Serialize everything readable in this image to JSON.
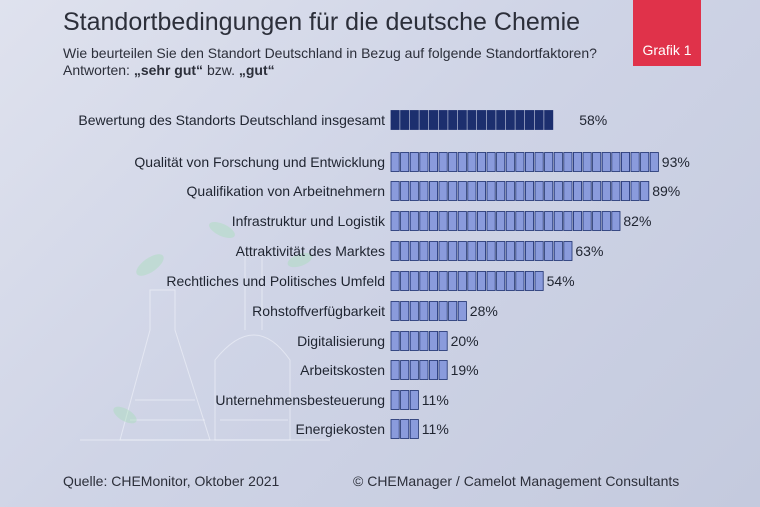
{
  "header": {
    "title": "Standortbedingungen für die deutsche Chemie",
    "subtitle": "Wie beurteilen Sie den Standort Deutschland in Bezug auf folgende Standortfaktoren?",
    "answers_prefix": "Antworten: ",
    "answers_bold1": "„sehr gut“",
    "answers_mid": " bzw. ",
    "answers_bold2": "„gut“",
    "badge": "Grafik 1"
  },
  "footer": {
    "source": "Quelle: CHEMonitor, Oktober 2021",
    "copyright": "© CHEManager / Camelot Management Consultants"
  },
  "colors": {
    "highlight_fill": "#1c2f6e",
    "bar_fill": "#8a9bdc",
    "bar_border": "#1c2f6e"
  },
  "chart_data": {
    "type": "bar",
    "orientation": "horizontal",
    "unit": "%",
    "categories": [
      "Bewertung des Standorts Deutschland insgesamt",
      "Qualität von Forschung und Entwicklung",
      "Qualifikation von Arbeitnehmern",
      "Infrastruktur und Logistik",
      "Attraktivität des Marktes",
      "Rechtliches und Politisches Umfeld",
      "Rohstoffverfügbarkeit",
      "Digitalisierung",
      "Arbeitskosten",
      "Unternehmensbesteuerung",
      "Energiekosten"
    ],
    "values": [
      58,
      93,
      89,
      82,
      63,
      54,
      28,
      20,
      19,
      11,
      11
    ],
    "labels": [
      "58%",
      "93%",
      "89%",
      "82%",
      "63%",
      "54%",
      "28%",
      "20%",
      "19%",
      "11%",
      "11%"
    ],
    "highlight": [
      true,
      false,
      false,
      false,
      false,
      false,
      false,
      false,
      false,
      false,
      false
    ],
    "xlim": [
      0,
      100
    ]
  }
}
